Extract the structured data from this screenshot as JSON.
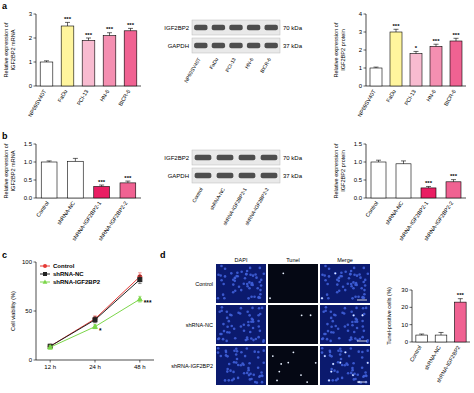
{
  "chart_data": [
    {
      "type": "bar",
      "panel": "a",
      "y_label": [
        "Relative expression of",
        "IGF2BP2 mRNA"
      ],
      "categories": [
        "NP69SV40T",
        "FaDu",
        "PCI-13",
        "HN-6",
        "BICR-6"
      ],
      "values": [
        1.0,
        2.5,
        1.9,
        2.1,
        2.3
      ],
      "errors": [
        0.05,
        0.15,
        0.1,
        0.12,
        0.1
      ],
      "annotations": [
        null,
        "***",
        "***",
        "***",
        "***"
      ],
      "colors": [
        "#ffffff",
        "#fff59d",
        "#f8bbd0",
        "#f48fb1",
        "#f06292"
      ],
      "ylim": [
        0,
        3
      ],
      "yticks": [
        0,
        1,
        2,
        3
      ],
      "grid": false
    },
    {
      "type": "bar",
      "y_label": [
        "Relative expression of",
        "IGF2BP2 protein"
      ],
      "categories": [
        "NP69SV40T",
        "FaDu",
        "PCI-13",
        "HN-6",
        "BICR-6"
      ],
      "values": [
        1.0,
        3.0,
        1.8,
        2.2,
        2.5
      ],
      "errors": [
        0.05,
        0.15,
        0.12,
        0.12,
        0.15
      ],
      "annotations": [
        null,
        "***",
        "*",
        "***",
        "***"
      ],
      "colors": [
        "#ffffff",
        "#fff59d",
        "#f8bbd0",
        "#f48fb1",
        "#f06292"
      ],
      "ylim": [
        0,
        4
      ],
      "yticks": [
        0,
        1,
        2,
        3,
        4
      ],
      "grid": false
    },
    {
      "type": "bar",
      "panel": "b",
      "y_label": [
        "Relative expression of",
        "IGF2BP2 mRNA"
      ],
      "categories": [
        "Control",
        "shRNA-NC",
        "shRNA-IGF2BP2-1",
        "shRNA-IGF2BP2-2"
      ],
      "values": [
        1.0,
        1.02,
        0.32,
        0.42
      ],
      "errors": [
        0.03,
        0.08,
        0.04,
        0.05
      ],
      "annotations": [
        null,
        null,
        "***",
        "***"
      ],
      "colors": [
        "#ffffff",
        "#ffffff",
        "#e91e63",
        "#f06292"
      ],
      "ylim": [
        0,
        1.5
      ],
      "yticks": [
        {
          "value": 0,
          "label": "0.0"
        },
        0.5,
        {
          "value": 1,
          "label": "1.0"
        },
        1.5
      ],
      "grid": false
    },
    {
      "type": "bar",
      "y_label": [
        "Relative expression of",
        "IGF2BP2 protein"
      ],
      "categories": [
        "Control",
        "shRNA-NC",
        "shRNA-IGF2BP2-1",
        "shRNA-IGF2BP2-2"
      ],
      "values": [
        1.0,
        0.95,
        0.28,
        0.45
      ],
      "errors": [
        0.05,
        0.08,
        0.04,
        0.06
      ],
      "annotations": [
        null,
        null,
        "***",
        "***"
      ],
      "colors": [
        "#ffffff",
        "#ffffff",
        "#e91e63",
        "#f06292"
      ],
      "ylim": [
        0,
        1.5
      ],
      "yticks": [
        {
          "value": 0,
          "label": "0.0"
        },
        0.5,
        {
          "value": 1,
          "label": "1.0"
        },
        1.5
      ],
      "grid": false
    },
    {
      "type": "line",
      "panel": "c",
      "y_label": [
        "Cell viability (%)"
      ],
      "categories": [
        "12 h",
        "24 h",
        "48 h"
      ],
      "series": [
        {
          "name": "Control",
          "color": "#e53935",
          "marker": "circle",
          "values": [
            14,
            42,
            85
          ],
          "errors": [
            2,
            3,
            4
          ]
        },
        {
          "name": "shRNA-NC",
          "color": "#222222",
          "marker": "square",
          "values": [
            14,
            41,
            82
          ],
          "errors": [
            2,
            3,
            4
          ]
        },
        {
          "name": "shRNA-IGF2BP2",
          "color": "#7cd64a",
          "marker": "triangle",
          "values": [
            13,
            34,
            62
          ],
          "errors": [
            2,
            2,
            3
          ],
          "annotations": [
            null,
            "*",
            "***"
          ]
        }
      ],
      "ylim": [
        0,
        100
      ],
      "yticks": [
        0,
        50,
        100
      ],
      "legend": "top-left",
      "grid": false
    },
    {
      "type": "bar",
      "y_label": [
        "Tunel-positive cells (%)"
      ],
      "categories": [
        "Control",
        "shRNA-NC",
        "shRNA-IGF2BP2"
      ],
      "values": [
        4,
        4,
        23
      ],
      "errors": [
        0.6,
        1.5,
        2
      ],
      "annotations": [
        null,
        null,
        "***"
      ],
      "colors": [
        "#ffffff",
        "#ffffff",
        "#f06292"
      ],
      "ylim": [
        0,
        30
      ],
      "yticks": [
        0,
        10,
        20,
        30
      ],
      "grid": false
    }
  ],
  "blots": [
    {
      "proteins": [
        {
          "name": "IGF2BP2",
          "size": "70 kDa"
        },
        {
          "name": "GAPDH",
          "size": "37 kDa"
        }
      ],
      "lanes": [
        "NP69SV40T",
        "FaDu",
        "PCI-13",
        "HN-6",
        "BICR-6"
      ]
    },
    {
      "proteins": [
        {
          "name": "IGF2BP2",
          "size": "70 kDa"
        },
        {
          "name": "GAPDH",
          "size": "37 kDa"
        }
      ],
      "lanes": [
        "Control",
        "shRNA-NC",
        "shRNA-IGF2BP2-1",
        "shRNA-IGF2BP2-2"
      ]
    }
  ],
  "micrographs": {
    "columns": [
      "DAPI",
      "Tunel",
      "Merge"
    ],
    "rows": [
      "Control",
      "shRNA-NC",
      "shRNA-IGF2BP2"
    ]
  },
  "panel_labels": [
    "a",
    "b",
    "c",
    "d"
  ]
}
